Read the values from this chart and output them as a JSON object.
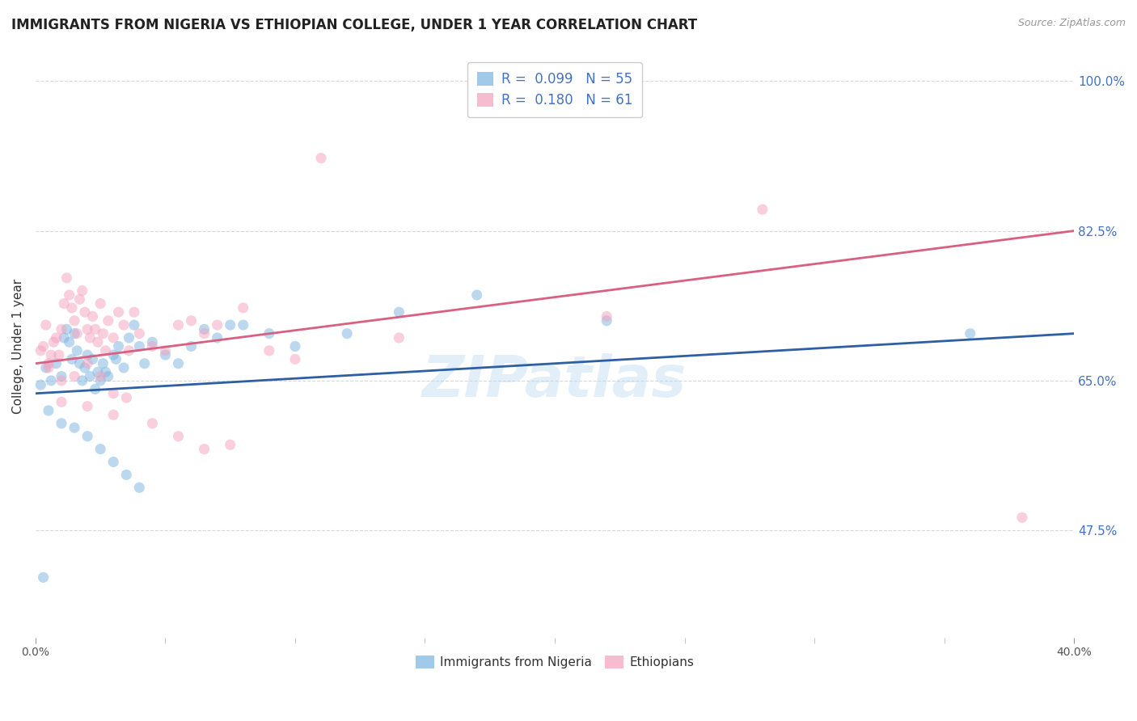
{
  "title": "IMMIGRANTS FROM NIGERIA VS ETHIOPIAN COLLEGE, UNDER 1 YEAR CORRELATION CHART",
  "source": "Source: ZipAtlas.com",
  "ylabel": "College, Under 1 year",
  "right_yticks": [
    100.0,
    82.5,
    65.0,
    47.5
  ],
  "right_ytick_labels": [
    "100.0%",
    "82.5%",
    "65.0%",
    "47.5%"
  ],
  "legend_entries": [
    {
      "label": "Immigrants from Nigeria",
      "R": "0.099",
      "N": "55",
      "color": "#a8c4e0"
    },
    {
      "label": "Ethiopians",
      "R": "0.180",
      "N": "61",
      "color": "#f4b8c8"
    }
  ],
  "watermark": "ZIPatlas",
  "blue_scatter_x": [
    0.2,
    0.4,
    0.6,
    0.8,
    1.0,
    1.1,
    1.2,
    1.3,
    1.4,
    1.5,
    1.6,
    1.7,
    1.8,
    1.9,
    2.0,
    2.1,
    2.2,
    2.3,
    2.4,
    2.5,
    2.6,
    2.7,
    2.8,
    3.0,
    3.1,
    3.2,
    3.4,
    3.6,
    3.8,
    4.0,
    4.2,
    4.5,
    5.0,
    5.5,
    6.0,
    6.5,
    7.0,
    7.5,
    8.0,
    9.0,
    10.0,
    12.0,
    14.0,
    17.0,
    22.0,
    36.0,
    0.5,
    1.0,
    1.5,
    2.0,
    2.5,
    3.0,
    3.5,
    4.0,
    0.3
  ],
  "blue_scatter_y": [
    64.5,
    66.5,
    65.0,
    67.0,
    65.5,
    70.0,
    71.0,
    69.5,
    67.5,
    70.5,
    68.5,
    67.0,
    65.0,
    66.5,
    68.0,
    65.5,
    67.5,
    64.0,
    66.0,
    65.0,
    67.0,
    66.0,
    65.5,
    68.0,
    67.5,
    69.0,
    66.5,
    70.0,
    71.5,
    69.0,
    67.0,
    69.5,
    68.0,
    67.0,
    69.0,
    71.0,
    70.0,
    71.5,
    71.5,
    70.5,
    69.0,
    70.5,
    73.0,
    75.0,
    72.0,
    70.5,
    61.5,
    60.0,
    59.5,
    58.5,
    57.0,
    55.5,
    54.0,
    52.5,
    42.0
  ],
  "pink_scatter_x": [
    0.2,
    0.3,
    0.4,
    0.5,
    0.6,
    0.7,
    0.8,
    0.9,
    1.0,
    1.1,
    1.2,
    1.3,
    1.4,
    1.5,
    1.6,
    1.7,
    1.8,
    1.9,
    2.0,
    2.1,
    2.2,
    2.3,
    2.4,
    2.5,
    2.6,
    2.7,
    2.8,
    3.0,
    3.2,
    3.4,
    3.6,
    3.8,
    4.0,
    4.5,
    5.0,
    5.5,
    6.0,
    6.5,
    7.0,
    8.0,
    9.0,
    10.0,
    14.0,
    22.0,
    28.0,
    0.5,
    1.0,
    1.5,
    2.0,
    2.5,
    3.0,
    3.5,
    4.5,
    5.5,
    6.5,
    7.5,
    1.0,
    2.0,
    3.0,
    11.0,
    38.0
  ],
  "pink_scatter_y": [
    68.5,
    69.0,
    71.5,
    67.0,
    68.0,
    69.5,
    70.0,
    68.0,
    71.0,
    74.0,
    77.0,
    75.0,
    73.5,
    72.0,
    70.5,
    74.5,
    75.5,
    73.0,
    71.0,
    70.0,
    72.5,
    71.0,
    69.5,
    74.0,
    70.5,
    68.5,
    72.0,
    70.0,
    73.0,
    71.5,
    68.5,
    73.0,
    70.5,
    69.0,
    68.5,
    71.5,
    72.0,
    70.5,
    71.5,
    73.5,
    68.5,
    67.5,
    70.0,
    72.5,
    85.0,
    66.5,
    65.0,
    65.5,
    67.0,
    65.5,
    63.5,
    63.0,
    60.0,
    58.5,
    57.0,
    57.5,
    62.5,
    62.0,
    61.0,
    91.0,
    49.0
  ],
  "blue_line_x": [
    0.0,
    40.0
  ],
  "blue_line_y": [
    63.5,
    70.5
  ],
  "pink_line_x": [
    0.0,
    40.0
  ],
  "pink_line_y": [
    67.0,
    82.5
  ],
  "xmin": 0.0,
  "xmax": 40.0,
  "ymin": 35.0,
  "ymax": 103.0,
  "grid_yticks": [
    100.0,
    82.5,
    65.0,
    47.5
  ],
  "grid_color": "#d8d8d8",
  "blue_color": "#7ab3e0",
  "pink_color": "#f4a0bc",
  "blue_line_color": "#2e5fa3",
  "pink_line_color": "#d96080",
  "legend_R_N_color": "#4472c4",
  "title_fontsize": 12,
  "axis_label_fontsize": 11,
  "tick_fontsize": 10,
  "scatter_size": 90,
  "scatter_alpha": 0.5
}
